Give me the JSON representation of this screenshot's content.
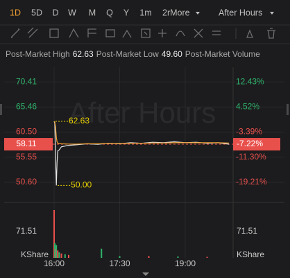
{
  "toolbar": {
    "periods": [
      "1D",
      "5D",
      "D",
      "W",
      "M",
      "Q",
      "Y",
      "1m"
    ],
    "more": "2rMore",
    "session": "After Hours",
    "selected_color": "#f0a030"
  },
  "stats": [
    {
      "label": "Post-Market High",
      "value": "62.63"
    },
    {
      "label": "Post-Market Low",
      "value": "49.60"
    },
    {
      "label": "Post-Market Volume"
    }
  ],
  "chart_data": {
    "type": "line",
    "watermark": "After Hours",
    "x": [
      "16:00",
      "16:01",
      "16:02",
      "16:03",
      "16:04",
      "16:05",
      "16:07",
      "16:10",
      "16:20",
      "16:30",
      "16:45",
      "17:00",
      "17:15",
      "17:30",
      "17:45",
      "18:00",
      "18:15",
      "18:30",
      "18:45",
      "19:00",
      "19:15",
      "19:30",
      "19:45",
      "20:00"
    ],
    "series": [
      {
        "color": "#e6e6e6",
        "values": [
          62.63,
          62.2,
          55.0,
          50.0,
          54.5,
          56.8,
          57.0,
          57.6,
          57.9,
          58.0,
          58.2,
          58.1,
          58.3,
          58.2,
          58.4,
          58.3,
          58.5,
          58.4,
          58.6,
          58.4,
          58.5,
          58.3,
          58.4,
          58.11
        ]
      },
      {
        "color": "#f0a030",
        "values": [
          62.63,
          62.5,
          61.5,
          59.5,
          58.6,
          58.3,
          58.25,
          58.2,
          58.15,
          58.15,
          58.2,
          58.2,
          58.25,
          58.25,
          58.3,
          58.3,
          58.35,
          58.35,
          58.4,
          58.4,
          58.4,
          58.4,
          58.4,
          58.35
        ]
      }
    ],
    "xlim": [
      "16:00",
      "20:00"
    ],
    "xticks": [
      "16:00",
      "17:30",
      "19:00"
    ],
    "ylim": [
      46.9,
      73.3
    ],
    "yticks": [
      70.41,
      65.46,
      {
        "value": 60.5,
        "label": "60.50"
      },
      55.55,
      {
        "value": 50.6,
        "label": "50.60"
      }
    ],
    "ytick_colors": [
      "#2fb36b",
      "#2fb36b",
      "#e8504c",
      "#e8504c",
      "#e8504c"
    ],
    "y2lim": [
      -25.12,
      17.04
    ],
    "y2ticks": [
      {
        "value": 12.43,
        "label": "12.43%"
      },
      {
        "value": 4.52,
        "label": "4.52%"
      },
      {
        "value": -3.39,
        "label": "-3.39%"
      },
      {
        "value": -11.3,
        "label": "-11.30%"
      },
      {
        "value": -19.21,
        "label": "-19.21%"
      }
    ],
    "y2tick_colors": [
      "#2fb36b",
      "#2fb36b",
      "#e8504c",
      "#e8504c",
      "#e8504c"
    ],
    "last": 58.11,
    "last_pct": {
      "value": -7.22,
      "label": "-7.22%"
    },
    "last_color": "#e8504c",
    "high_marker": 62.63,
    "low_marker": {
      "value": 50,
      "label": "50.00"
    },
    "marker_color": "#e8d000",
    "grid": true,
    "volume": {
      "label": "KShare",
      "x": [
        "16:00",
        "16:01",
        "16:02",
        "16:03",
        "16:05",
        "16:07",
        "16:10",
        "16:15",
        "16:20",
        "17:05",
        "17:30",
        "18:10",
        "18:50",
        "19:30"
      ],
      "values": [
        130,
        40,
        25,
        35,
        20,
        15,
        12,
        10,
        8,
        25,
        5,
        5,
        4,
        3
      ],
      "colors": [
        "#e8504c",
        "#2fb36b",
        "#e8504c",
        "#2fb36b",
        "#e8504c",
        "#2fb36b",
        "#e8504c",
        "#2fb36b",
        "#e8504c",
        "#2fb36b",
        "#2fb36b",
        "#e8504c",
        "#2fb36b",
        "#e8504c"
      ],
      "ylim": [
        0,
        145
      ],
      "yticks": [
        71.51
      ]
    }
  }
}
